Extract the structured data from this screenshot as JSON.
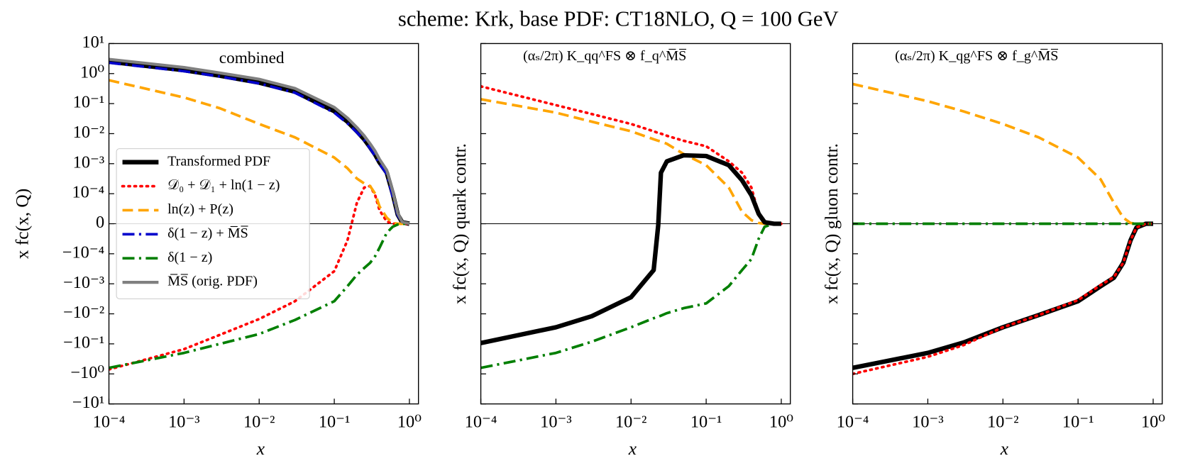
{
  "title": "scheme: Krk, base PDF: CT18NLO, Q = 100 GeV",
  "chart_data": [
    {
      "type": "line",
      "title": "combined",
      "xlabel": "x",
      "ylabel": "x fc(x, Q)",
      "xscale": "log",
      "yscale": "symlog",
      "linthresh": 0.0001,
      "zero_line": true,
      "legend": "center left",
      "xlim": [
        0.0001,
        1.32
      ],
      "ylim": [
        -10,
        10
      ],
      "xticks": [
        {
          "value": 0.0001,
          "label": "10⁻⁴"
        },
        {
          "value": 0.001,
          "label": "10⁻³"
        },
        {
          "value": 0.01,
          "label": "10⁻²"
        },
        {
          "value": 0.1,
          "label": "10⁻¹"
        },
        {
          "value": 1,
          "label": "10⁰"
        }
      ],
      "yticks": [
        {
          "value": 10,
          "label": "10¹"
        },
        {
          "value": 1,
          "label": "10⁰"
        },
        {
          "value": 0.1,
          "label": "10⁻¹"
        },
        {
          "value": 0.01,
          "label": "10⁻²"
        },
        {
          "value": 0.001,
          "label": "10⁻³"
        },
        {
          "value": 0.0001,
          "label": "10⁻⁴"
        },
        0,
        {
          "value": -0.0001,
          "label": "−10⁻⁴"
        },
        {
          "value": -0.001,
          "label": "−10⁻³"
        },
        {
          "value": -0.01,
          "label": "−10⁻²"
        },
        {
          "value": -0.1,
          "label": "−10⁻¹"
        },
        {
          "value": -1,
          "label": "−10⁰"
        },
        {
          "value": -10,
          "label": "−10¹"
        }
      ],
      "x": [
        0.0001,
        0.001,
        0.003,
        0.01,
        0.03,
        0.1,
        0.15,
        0.2,
        0.25,
        0.3,
        0.35,
        0.4,
        0.5,
        0.6,
        0.7,
        0.8,
        1.0
      ],
      "series": [
        {
          "name": "Transformed PDF",
          "color": "#000000",
          "linestyle": "solid",
          "linewidth": 6,
          "values": [
            2.5,
            1.3,
            0.85,
            0.5,
            0.25,
            0.056,
            0.025,
            0.012,
            0.0065,
            0.0035,
            0.002,
            0.0011,
            0.0005,
            0.0001,
            3e-05,
            5e-06,
            0
          ]
        },
        {
          "name": "𝒟₀ + 𝒟₁ + ln(1 − z)",
          "color": "#ff0000",
          "linestyle": "dotted",
          "linewidth": 3.5,
          "values": [
            -0.71,
            -0.15,
            -0.05,
            -0.0149,
            -0.0038,
            -0.00038,
            -5.5e-05,
            7e-05,
            0.00016,
            0.00018,
            9.5e-05,
            4.5e-05,
            7.5e-06,
            0,
            0,
            0,
            0
          ]
        },
        {
          "name": "ln(z) + P(z)",
          "color": "#ffa500",
          "linestyle": "dashed",
          "linewidth": 3.5,
          "values": [
            0.6,
            0.16,
            0.07,
            0.021,
            0.0075,
            0.0016,
            0.0007,
            0.00032,
            0.00022,
            0.00018,
            0.0001,
            5.75e-05,
            2e-05,
            2.5e-06,
            0,
            0,
            0
          ]
        },
        {
          "name": "δ(1 − z) + M̅S̅",
          "color": "#0000cc",
          "linestyle": "dashdot",
          "linewidth": 3.5,
          "values": [
            2.3,
            1.2,
            0.8,
            0.47,
            0.23,
            0.05,
            0.022,
            0.011,
            0.006,
            0.0032,
            0.0018,
            0.001,
            0.00045,
            9e-05,
            2.8e-05,
            5e-06,
            0
          ]
        },
        {
          "name": "δ(1 − z)",
          "color": "#007f00",
          "linestyle": "dashdot",
          "linewidth": 3.5,
          "values": [
            -0.63,
            -0.2,
            -0.1,
            -0.047,
            -0.016,
            -0.0038,
            -0.0012,
            -0.0005,
            -0.0003,
            -0.0002,
            -0.00012,
            -8e-05,
            -3e-05,
            -1e-05,
            -2.5e-06,
            0,
            0
          ]
        },
        {
          "name": "M̅S̅ (orig. PDF)",
          "color": "#808080",
          "linestyle": "solid",
          "linewidth": 4,
          "values": [
            3.0,
            1.6,
            1.05,
            0.65,
            0.32,
            0.075,
            0.033,
            0.016,
            0.0085,
            0.0046,
            0.0026,
            0.0014,
            0.0006,
            0.00012,
            3.5e-05,
            6e-06,
            0
          ]
        }
      ]
    },
    {
      "type": "line",
      "title": "(αₛ/2π) K_qq^FS ⊗ f_q^M̅S̅",
      "xlabel": "x",
      "ylabel": "x fc(x, Q)  quark contr.",
      "xscale": "log",
      "yscale": "symlog",
      "linthresh": 0.0001,
      "zero_line": true,
      "xlim": [
        0.0001,
        1.32
      ],
      "ylim": [
        -10,
        10
      ],
      "xticks": [
        {
          "value": 0.0001,
          "label": "10⁻⁴"
        },
        {
          "value": 0.001,
          "label": "10⁻³"
        },
        {
          "value": 0.01,
          "label": "10⁻²"
        },
        {
          "value": 0.1,
          "label": "10⁻¹"
        },
        {
          "value": 1,
          "label": "10⁰"
        }
      ],
      "yticks": [
        10,
        1,
        0.1,
        0.01,
        0.001,
        0.0001,
        0,
        -0.0001,
        -0.001,
        -0.01,
        -0.1,
        -1,
        -10
      ],
      "ytick_labels": false,
      "x": [
        0.0001,
        0.001,
        0.003,
        0.01,
        0.02,
        0.023,
        0.025,
        0.03,
        0.05,
        0.1,
        0.2,
        0.3,
        0.4,
        0.5,
        0.6,
        0.8,
        1.0
      ],
      "series": [
        {
          "color": "#ff0000",
          "linestyle": "dotted",
          "linewidth": 3.5,
          "values": [
            0.376,
            0.089,
            0.045,
            0.021,
            0.012,
            0.0105,
            0.01,
            0.0085,
            0.0058,
            0.0038,
            0.0012,
            0.0005,
            0.00016,
            3.3e-05,
            5e-06,
            0,
            0
          ]
        },
        {
          "color": "#ffa500",
          "linestyle": "dashed",
          "linewidth": 3.5,
          "values": [
            0.14,
            0.05,
            0.025,
            0.012,
            0.0065,
            0.0058,
            0.0055,
            0.0046,
            0.0021,
            0.00089,
            0.00016,
            4e-05,
            1.2e-05,
            2.5e-06,
            0,
            0,
            0
          ]
        },
        {
          "color": "#007f00",
          "linestyle": "dashdot",
          "linewidth": 3.5,
          "values": [
            -0.63,
            -0.2,
            -0.085,
            -0.028,
            -0.014,
            -0.0125,
            -0.0115,
            -0.0095,
            -0.0065,
            -0.0045,
            -0.0012,
            -0.00035,
            -0.00015,
            -5e-05,
            -1e-05,
            0,
            0
          ]
        },
        {
          "color": "#000000",
          "linestyle": "solid",
          "linewidth": 6,
          "values": [
            -0.094,
            -0.028,
            -0.012,
            -0.0028,
            -0.00035,
            -5e-06,
            0.0005,
            0.0012,
            0.0019,
            0.0018,
            0.00089,
            0.00028,
            9.5e-05,
            3.3e-05,
            5e-06,
            0,
            0
          ]
        }
      ]
    },
    {
      "type": "line",
      "title": "(αₛ/2π) K_qg^FS ⊗ f_g^M̅S̅",
      "xlabel": "x",
      "ylabel": "x fc(x, Q)  gluon contr.",
      "xscale": "log",
      "yscale": "symlog",
      "linthresh": 0.0001,
      "zero_line": true,
      "xlim": [
        0.0001,
        1.32
      ],
      "ylim": [
        -10,
        10
      ],
      "xticks": [
        {
          "value": 0.0001,
          "label": "10⁻⁴"
        },
        {
          "value": 0.001,
          "label": "10⁻³"
        },
        {
          "value": 0.01,
          "label": "10⁻²"
        },
        {
          "value": 0.1,
          "label": "10⁻¹"
        },
        {
          "value": 1,
          "label": "10⁰"
        }
      ],
      "yticks": [
        10,
        1,
        0.1,
        0.01,
        0.001,
        0.0001,
        0,
        -0.0001,
        -0.001,
        -0.01,
        -0.1,
        -1,
        -10
      ],
      "ytick_labels": false,
      "x": [
        0.0001,
        0.001,
        0.003,
        0.01,
        0.03,
        0.1,
        0.2,
        0.3,
        0.4,
        0.5,
        0.6,
        0.8,
        1.0
      ],
      "series": [
        {
          "color": "#ffa500",
          "linestyle": "dashed",
          "linewidth": 3.5,
          "values": [
            0.45,
            0.12,
            0.055,
            0.021,
            0.0075,
            0.0016,
            0.0003,
            7e-05,
            2e-05,
            2.5e-06,
            0,
            0,
            0
          ]
        },
        {
          "color": "#000000",
          "linestyle": "solid",
          "linewidth": 6,
          "values": [
            -0.63,
            -0.2,
            -0.09,
            -0.028,
            -0.011,
            -0.0038,
            -0.0012,
            -0.00063,
            -0.0002,
            -5.5e-05,
            -1.25e-05,
            0,
            0
          ]
        },
        {
          "color": "#ff0000",
          "linestyle": "dotted",
          "linewidth": 3.5,
          "values": [
            -1.0,
            -0.27,
            -0.11,
            -0.028,
            -0.011,
            -0.0035,
            -0.0011,
            -0.0006,
            -0.0002,
            -5.5e-05,
            -1.25e-05,
            0,
            0
          ]
        },
        {
          "color": "#007f00",
          "linestyle": "dashdot",
          "linewidth": 3.5,
          "values": [
            0,
            0,
            0,
            0,
            0,
            0,
            0,
            0,
            0,
            0,
            0,
            0,
            0
          ]
        }
      ]
    }
  ]
}
